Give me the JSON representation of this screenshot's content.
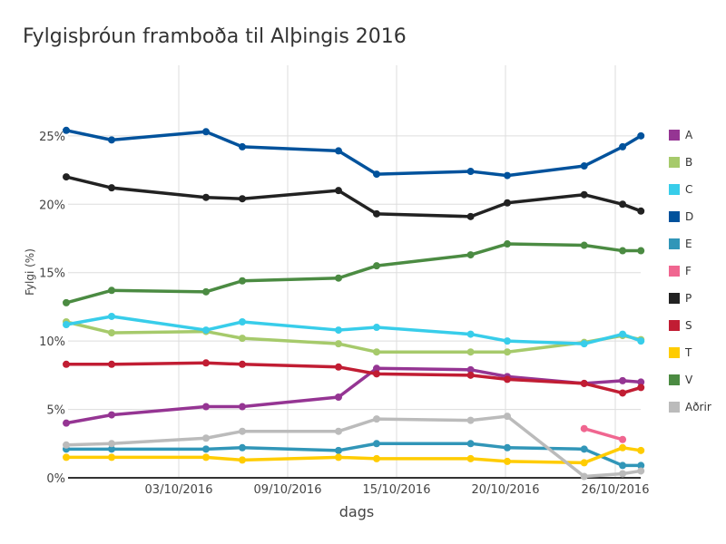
{
  "chart_data": {
    "type": "line",
    "title": "Fylgisþróun framboða til Alþingis 2016",
    "xlabel": "dags",
    "ylabel": "Fylgi (%)",
    "x_ticks": [
      {
        "x": 3,
        "label": "03/10/2016"
      },
      {
        "x": 9,
        "label": "09/10/2016"
      },
      {
        "x": 15,
        "label": "15/10/2016"
      },
      {
        "x": 20,
        "label": "20/10/2016"
      },
      {
        "x": 26,
        "label": "26/10/2016"
      }
    ],
    "x_unit": "day of October 2016 (negative = September)",
    "y_ticks": [
      {
        "y": 0,
        "label": "0%"
      },
      {
        "y": 5,
        "label": "5%"
      },
      {
        "y": 10,
        "label": "10%"
      },
      {
        "y": 15,
        "label": "15%"
      },
      {
        "y": 20,
        "label": "20%"
      },
      {
        "y": 25,
        "label": "25%"
      }
    ],
    "ylim": [
      0,
      30
    ],
    "grid": true,
    "legend_position": "right",
    "x": [
      -3.2,
      -0.7,
      4.5,
      6.5,
      11.8,
      13.9,
      18.4,
      20.1,
      24.3,
      26.4,
      27.4
    ],
    "series": [
      {
        "name": "A",
        "color": "#953593",
        "values": [
          4.0,
          4.6,
          5.2,
          5.2,
          5.9,
          8.0,
          7.9,
          7.4,
          6.9,
          7.1,
          7.0
        ]
      },
      {
        "name": "B",
        "color": "#a6ca6b",
        "values": [
          11.4,
          10.6,
          10.7,
          10.2,
          9.8,
          9.2,
          9.2,
          9.2,
          9.9,
          10.4,
          10.1
        ]
      },
      {
        "name": "C",
        "color": "#38cdea",
        "values": [
          11.2,
          11.8,
          10.8,
          11.4,
          10.8,
          11.0,
          10.5,
          10.0,
          9.8,
          10.5,
          10.0
        ]
      },
      {
        "name": "D",
        "color": "#00529c",
        "values": [
          25.4,
          24.7,
          25.3,
          24.2,
          23.9,
          22.2,
          22.4,
          22.1,
          22.8,
          24.2,
          25.0
        ]
      },
      {
        "name": "E",
        "color": "#3196b8",
        "values": [
          2.1,
          2.1,
          2.1,
          2.2,
          2.0,
          2.5,
          2.5,
          2.2,
          2.1,
          0.9,
          0.9
        ]
      },
      {
        "name": "F",
        "color": "#f06690",
        "values": [
          null,
          null,
          null,
          null,
          null,
          null,
          null,
          null,
          3.6,
          2.8,
          null
        ]
      },
      {
        "name": "P",
        "color": "#222222",
        "values": [
          22.0,
          21.2,
          20.5,
          20.4,
          21.0,
          19.3,
          19.1,
          20.1,
          20.7,
          20.0,
          19.5
        ]
      },
      {
        "name": "S",
        "color": "#c11d33",
        "values": [
          8.3,
          8.3,
          8.4,
          8.3,
          8.1,
          7.6,
          7.5,
          7.2,
          6.9,
          6.2,
          6.6
        ]
      },
      {
        "name": "T",
        "color": "#ffcc00",
        "values": [
          1.5,
          1.5,
          1.5,
          1.3,
          1.5,
          1.4,
          1.4,
          1.2,
          1.1,
          2.2,
          2.0
        ]
      },
      {
        "name": "V",
        "color": "#4b8b42",
        "values": [
          12.8,
          13.7,
          13.6,
          14.4,
          14.6,
          15.5,
          16.3,
          17.1,
          17.0,
          16.6,
          16.6
        ]
      },
      {
        "name": "Aðrir",
        "color": "#bbbbbb",
        "values": [
          2.4,
          2.5,
          2.9,
          3.4,
          3.4,
          4.3,
          4.2,
          4.5,
          0.1,
          0.3,
          0.5
        ]
      }
    ]
  }
}
